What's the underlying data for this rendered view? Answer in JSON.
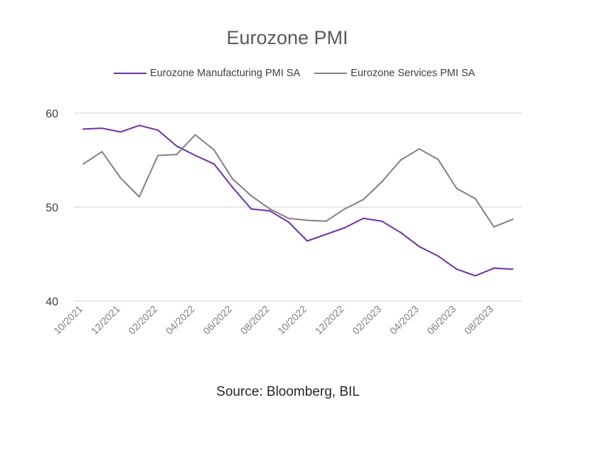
{
  "chart_data": {
    "type": "line",
    "title": "Eurozone PMI",
    "source": "Source: Bloomberg, BIL",
    "x": [
      "10/2021",
      "11/2021",
      "12/2021",
      "01/2022",
      "02/2022",
      "03/2022",
      "04/2022",
      "05/2022",
      "06/2022",
      "07/2022",
      "08/2022",
      "09/2022",
      "10/2022",
      "11/2022",
      "12/2022",
      "01/2023",
      "02/2023",
      "03/2023",
      "04/2023",
      "05/2023",
      "06/2023",
      "07/2023",
      "08/2023",
      "09/2023"
    ],
    "x_tick_labels": [
      "10/2021",
      "12/2021",
      "02/2022",
      "04/2022",
      "06/2022",
      "08/2022",
      "10/2022",
      "12/2022",
      "02/2023",
      "04/2023",
      "06/2023",
      "08/2023"
    ],
    "ylim": [
      40,
      60
    ],
    "y_ticks": [
      40,
      50,
      60
    ],
    "grid": true,
    "legend_position": "top",
    "series": [
      {
        "name": "Eurozone Manufacturing PMI SA",
        "color": "#7030A0",
        "values": [
          58.3,
          58.4,
          58.0,
          58.7,
          58.2,
          56.5,
          55.5,
          54.6,
          52.1,
          49.8,
          49.6,
          48.4,
          46.4,
          47.1,
          47.8,
          48.8,
          48.5,
          47.3,
          45.8,
          44.8,
          43.4,
          42.7,
          43.5,
          43.4
        ]
      },
      {
        "name": "Eurozone Services PMI SA",
        "color": "#808080",
        "values": [
          54.6,
          55.9,
          53.1,
          51.1,
          55.5,
          55.6,
          57.7,
          56.1,
          53.0,
          51.2,
          49.8,
          48.8,
          48.6,
          48.5,
          49.8,
          50.8,
          52.7,
          55.0,
          56.2,
          55.1,
          52.0,
          50.9,
          47.9,
          48.7
        ]
      }
    ]
  }
}
